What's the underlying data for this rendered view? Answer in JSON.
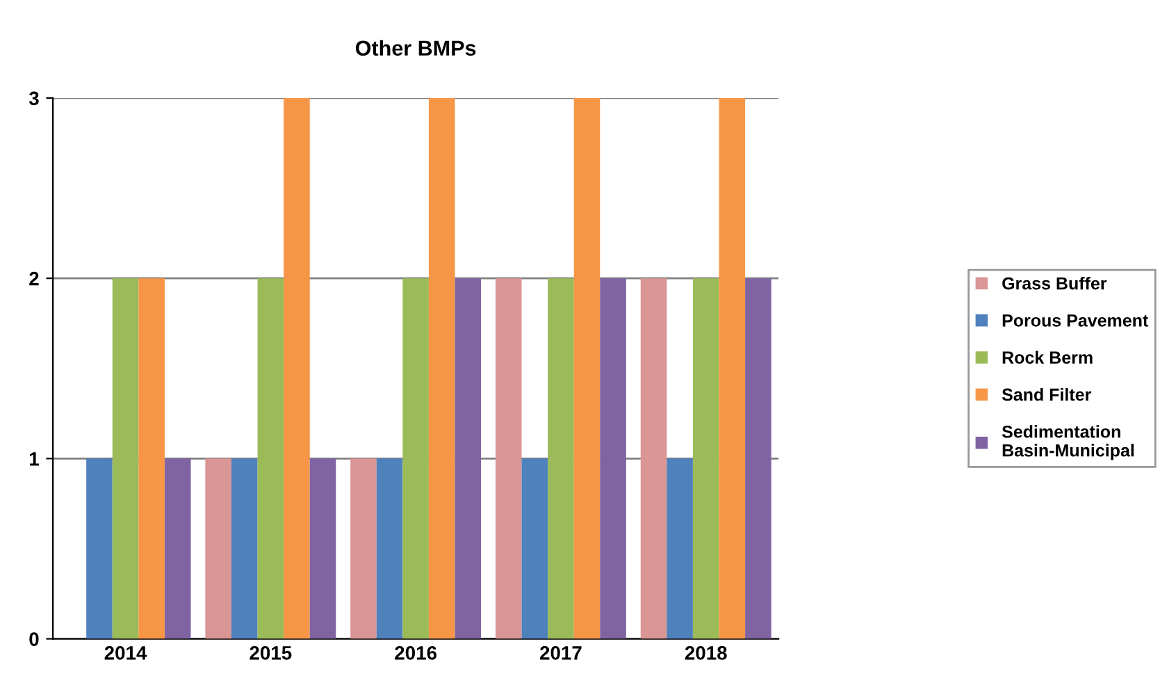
{
  "chart_data": {
    "type": "bar",
    "title": "Other BMPs",
    "categories": [
      "2014",
      "2015",
      "2016",
      "2017",
      "2018"
    ],
    "series": [
      {
        "name": "Grass Buffer",
        "color": "#d99694",
        "values": [
          0,
          1,
          1,
          2,
          2
        ]
      },
      {
        "name": "Porous Pavement",
        "color": "#4f81bd",
        "values": [
          1,
          1,
          1,
          1,
          1
        ]
      },
      {
        "name": "Rock Berm",
        "color": "#9bbb59",
        "values": [
          2,
          2,
          2,
          2,
          2
        ]
      },
      {
        "name": "Sand Filter",
        "color": "#f79646",
        "values": [
          2,
          3,
          3,
          3,
          3
        ]
      },
      {
        "name": "Sedimentation Basin-Municipal",
        "color": "#8064a2",
        "values": [
          1,
          1,
          2,
          2,
          2
        ]
      }
    ],
    "ylim": [
      0,
      3
    ],
    "yticks": [
      0,
      1,
      2,
      3
    ],
    "grid": "y",
    "legend": "right"
  }
}
